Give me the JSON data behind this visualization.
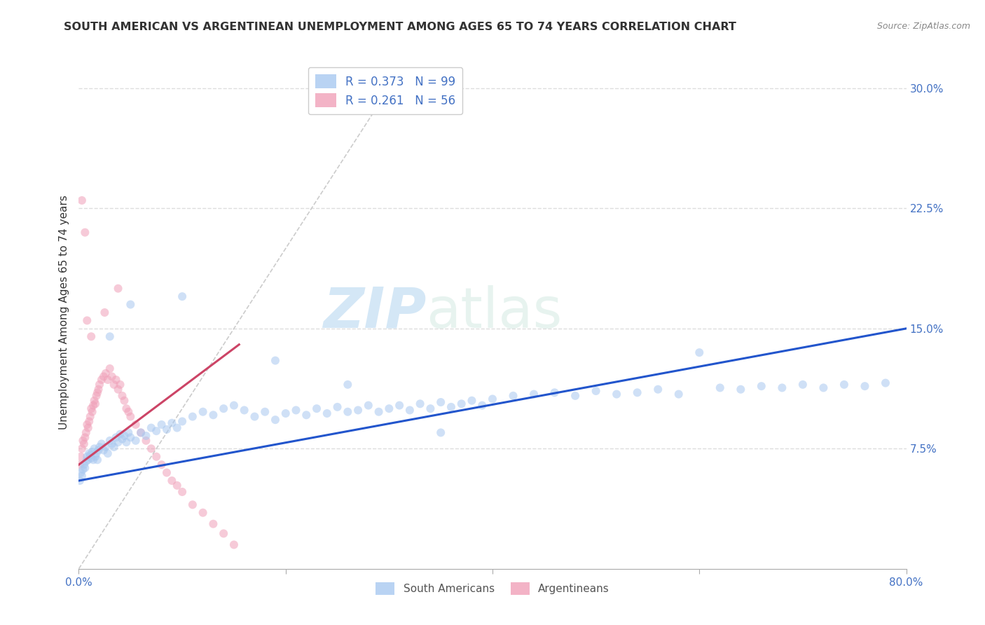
{
  "title": "SOUTH AMERICAN VS ARGENTINEAN UNEMPLOYMENT AMONG AGES 65 TO 74 YEARS CORRELATION CHART",
  "source": "Source: ZipAtlas.com",
  "ylabel": "Unemployment Among Ages 65 to 74 years",
  "xlim": [
    0.0,
    0.8
  ],
  "ylim": [
    0.0,
    0.32
  ],
  "xticks": [
    0.0,
    0.2,
    0.4,
    0.6,
    0.8
  ],
  "xticklabels": [
    "0.0%",
    "",
    "",
    "",
    "80.0%"
  ],
  "yticks_right": [
    0.075,
    0.15,
    0.225,
    0.3
  ],
  "yticklabels_right": [
    "7.5%",
    "15.0%",
    "22.5%",
    "30.0%"
  ],
  "grid_color": "#dddddd",
  "background_color": "#ffffff",
  "watermark_zip": "ZIP",
  "watermark_atlas": "atlas",
  "legend_r1": "R = 0.373",
  "legend_n1": "N = 99",
  "legend_r2": "R = 0.261",
  "legend_n2": "N = 56",
  "sa_color": "#a8c8f0",
  "arg_color": "#f0a0b8",
  "sa_line_color": "#2255cc",
  "arg_line_color": "#cc4466",
  "diagonal_color": "#cccccc",
  "title_fontsize": 11.5,
  "label_fontsize": 11,
  "tick_fontsize": 11,
  "sa_scatter_x": [
    0.001,
    0.002,
    0.003,
    0.004,
    0.005,
    0.006,
    0.007,
    0.008,
    0.009,
    0.01,
    0.011,
    0.012,
    0.013,
    0.014,
    0.015,
    0.016,
    0.017,
    0.018,
    0.019,
    0.02,
    0.022,
    0.024,
    0.026,
    0.028,
    0.03,
    0.032,
    0.034,
    0.036,
    0.038,
    0.04,
    0.042,
    0.044,
    0.046,
    0.048,
    0.05,
    0.055,
    0.06,
    0.065,
    0.07,
    0.075,
    0.08,
    0.085,
    0.09,
    0.095,
    0.1,
    0.11,
    0.12,
    0.13,
    0.14,
    0.15,
    0.16,
    0.17,
    0.18,
    0.19,
    0.2,
    0.21,
    0.22,
    0.23,
    0.24,
    0.25,
    0.26,
    0.27,
    0.28,
    0.29,
    0.3,
    0.31,
    0.32,
    0.33,
    0.34,
    0.35,
    0.36,
    0.37,
    0.38,
    0.39,
    0.4,
    0.42,
    0.44,
    0.46,
    0.48,
    0.5,
    0.52,
    0.54,
    0.56,
    0.58,
    0.6,
    0.62,
    0.64,
    0.66,
    0.68,
    0.7,
    0.72,
    0.74,
    0.76,
    0.78,
    0.19,
    0.26,
    0.35,
    0.1,
    0.05,
    0.03
  ],
  "sa_scatter_y": [
    0.055,
    0.06,
    0.058,
    0.062,
    0.065,
    0.063,
    0.067,
    0.07,
    0.068,
    0.072,
    0.071,
    0.069,
    0.073,
    0.068,
    0.075,
    0.07,
    0.072,
    0.068,
    0.074,
    0.076,
    0.078,
    0.074,
    0.076,
    0.072,
    0.08,
    0.078,
    0.076,
    0.082,
    0.079,
    0.084,
    0.081,
    0.083,
    0.079,
    0.085,
    0.082,
    0.08,
    0.085,
    0.083,
    0.088,
    0.086,
    0.09,
    0.087,
    0.091,
    0.088,
    0.092,
    0.095,
    0.098,
    0.096,
    0.1,
    0.102,
    0.099,
    0.095,
    0.098,
    0.093,
    0.097,
    0.099,
    0.096,
    0.1,
    0.097,
    0.101,
    0.098,
    0.099,
    0.102,
    0.098,
    0.1,
    0.102,
    0.099,
    0.103,
    0.1,
    0.104,
    0.101,
    0.103,
    0.105,
    0.102,
    0.106,
    0.108,
    0.109,
    0.11,
    0.108,
    0.111,
    0.109,
    0.11,
    0.112,
    0.109,
    0.135,
    0.113,
    0.112,
    0.114,
    0.113,
    0.115,
    0.113,
    0.115,
    0.114,
    0.116,
    0.13,
    0.115,
    0.085,
    0.17,
    0.165,
    0.145
  ],
  "arg_scatter_x": [
    0.001,
    0.002,
    0.003,
    0.004,
    0.005,
    0.006,
    0.007,
    0.008,
    0.009,
    0.01,
    0.011,
    0.012,
    0.013,
    0.014,
    0.015,
    0.016,
    0.017,
    0.018,
    0.019,
    0.02,
    0.022,
    0.024,
    0.026,
    0.028,
    0.03,
    0.032,
    0.034,
    0.036,
    0.038,
    0.04,
    0.042,
    0.044,
    0.046,
    0.048,
    0.05,
    0.055,
    0.06,
    0.065,
    0.07,
    0.075,
    0.08,
    0.085,
    0.09,
    0.095,
    0.1,
    0.11,
    0.12,
    0.13,
    0.14,
    0.15,
    0.012,
    0.025,
    0.038,
    0.008,
    0.003,
    0.006
  ],
  "arg_scatter_y": [
    0.065,
    0.07,
    0.075,
    0.08,
    0.078,
    0.082,
    0.085,
    0.09,
    0.088,
    0.092,
    0.095,
    0.1,
    0.098,
    0.102,
    0.105,
    0.103,
    0.108,
    0.11,
    0.112,
    0.115,
    0.118,
    0.12,
    0.122,
    0.118,
    0.125,
    0.12,
    0.115,
    0.118,
    0.112,
    0.115,
    0.108,
    0.105,
    0.1,
    0.098,
    0.095,
    0.09,
    0.085,
    0.08,
    0.075,
    0.07,
    0.065,
    0.06,
    0.055,
    0.052,
    0.048,
    0.04,
    0.035,
    0.028,
    0.022,
    0.015,
    0.145,
    0.16,
    0.175,
    0.155,
    0.23,
    0.21
  ],
  "sa_line_x": [
    0.0,
    0.8
  ],
  "sa_line_y": [
    0.055,
    0.15
  ],
  "arg_line_x": [
    0.0,
    0.155
  ],
  "arg_line_y": [
    0.065,
    0.14
  ],
  "diag_line_x": [
    0.0,
    0.3
  ],
  "diag_line_y": [
    0.0,
    0.3
  ]
}
